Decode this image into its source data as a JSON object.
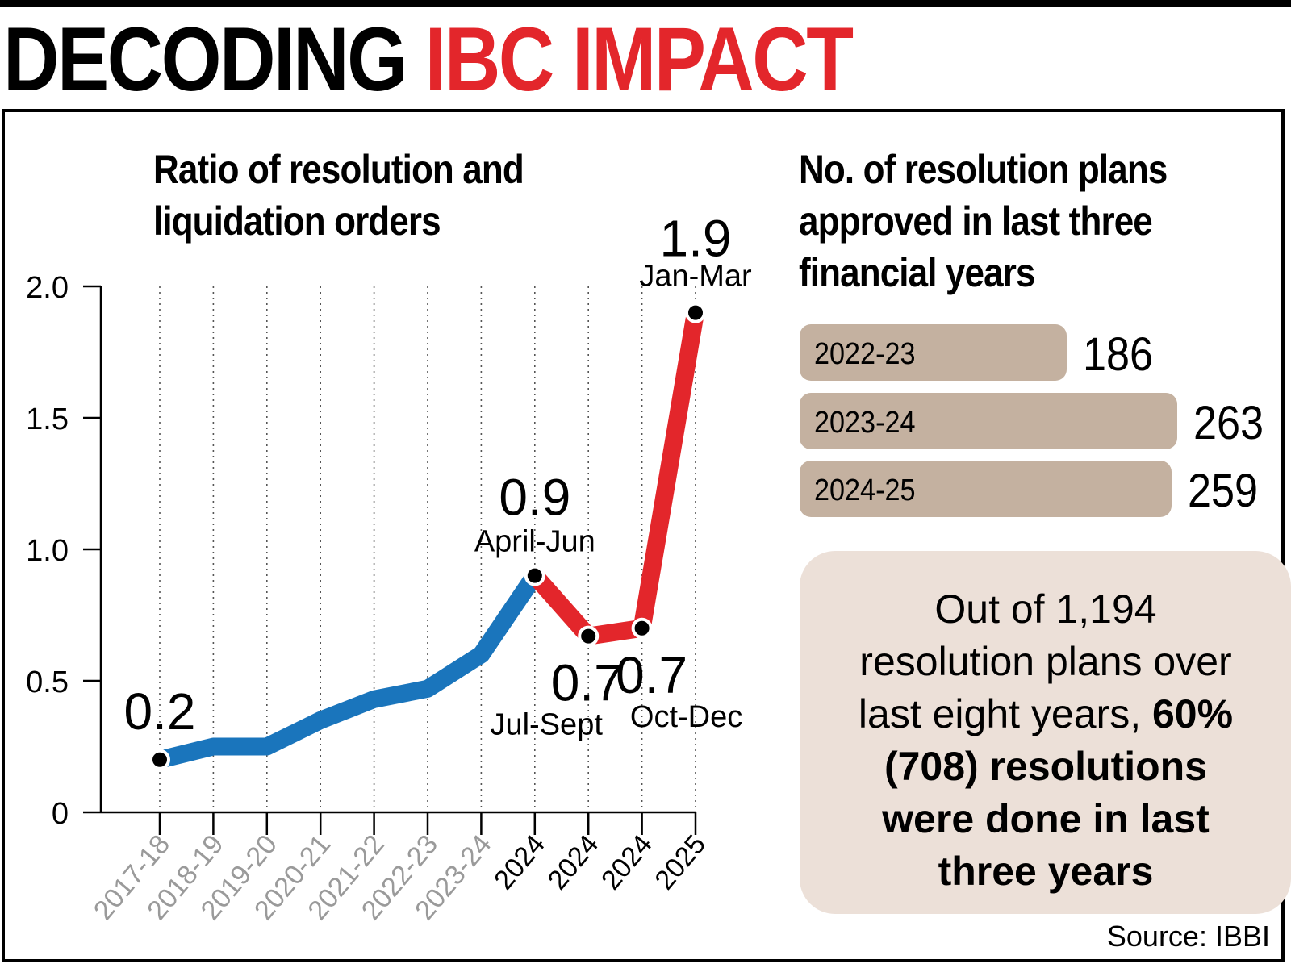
{
  "headline": {
    "part1": "DECODING",
    "part2": "IBC IMPACT"
  },
  "colors": {
    "blue": "#1a75bc",
    "red": "#e3262b",
    "bar": "#c4b1a0",
    "note_bg": "#ece0d8",
    "grey_tick": "#9a9a9a"
  },
  "chart_data": [
    {
      "type": "line",
      "title": "Ratio of resolution and liquidation orders",
      "ylim": [
        0,
        2.0
      ],
      "y_ticks": [
        "0",
        "0.5",
        "1.0",
        "1.5",
        "2.0"
      ],
      "x": [
        "2017-18",
        "2018-19",
        "2019-20",
        "2020-21",
        "2021-22",
        "2022-23",
        "2023-24",
        "2024",
        "2024",
        "2024",
        "2025"
      ],
      "values": [
        0.2,
        0.25,
        0.25,
        0.35,
        0.43,
        0.47,
        0.6,
        0.9,
        0.67,
        0.7,
        1.9
      ],
      "grey_tick_count": 7,
      "segments": [
        {
          "color": "blue",
          "from": 0,
          "to": 7
        },
        {
          "color": "red",
          "from": 7,
          "to": 10
        }
      ],
      "annotations": [
        {
          "index": 0,
          "value": "0.2",
          "label": ""
        },
        {
          "index": 7,
          "value": "0.9",
          "label": "April-Jun"
        },
        {
          "index": 8,
          "value": "0.7",
          "label": "Jul-Sept"
        },
        {
          "index": 9,
          "value": "0.7",
          "label": "Oct-Dec"
        },
        {
          "index": 10,
          "value": "1.9",
          "label": "Jan-Mar"
        }
      ],
      "grid": "vertical-dotted"
    },
    {
      "type": "bar",
      "orientation": "horizontal",
      "title": "No. of resolution plans approved in last three financial years",
      "categories": [
        "2022-23",
        "2023-24",
        "2024-25"
      ],
      "values": [
        186,
        263,
        259
      ]
    }
  ],
  "note": {
    "line1": "Out of 1,194",
    "line2": "resolution plans over",
    "line3a": "last eight years,",
    "line3b": "60%",
    "line4": "(708) resolutions",
    "line5": "were done in last",
    "line6": "three years"
  },
  "source": "Source: IBBI"
}
